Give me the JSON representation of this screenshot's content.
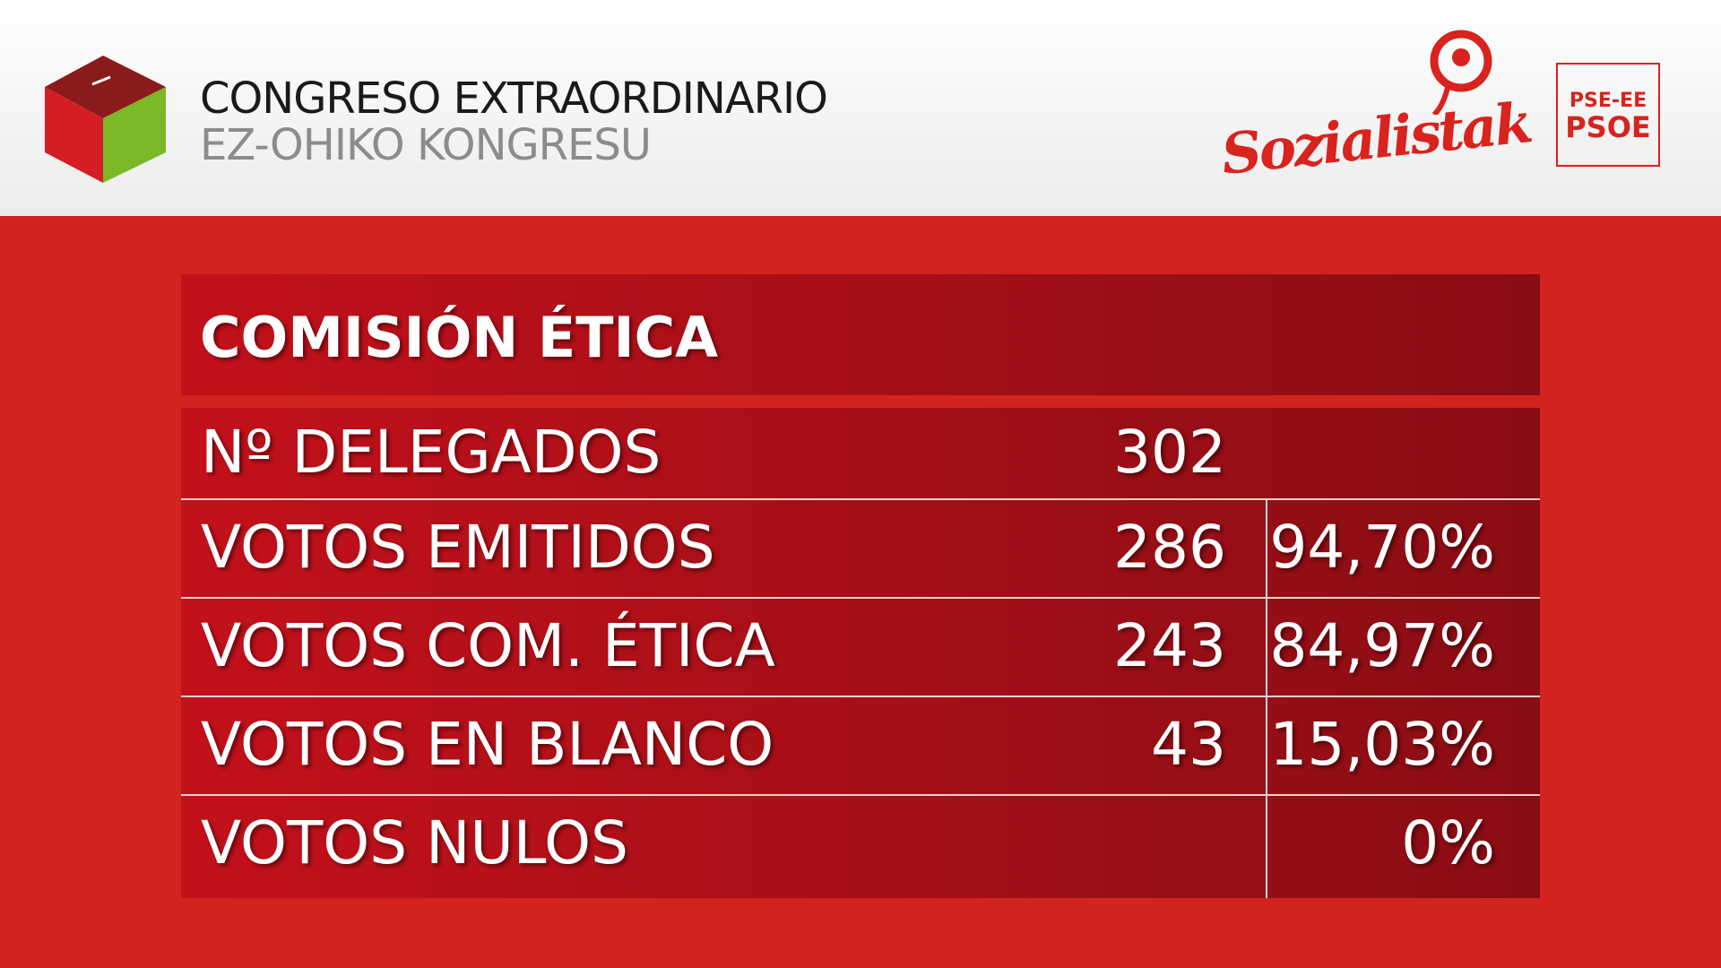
{
  "header": {
    "title": "CONGRESO EXTRAORDINARIO",
    "subtitle": "EZ-OHIKO KONGRESU",
    "party_logo": "Sozialistak",
    "badge": [
      "PSE-EE",
      "PSOE"
    ]
  },
  "table": {
    "title": "COMISIÓN ÉTICA",
    "rows": [
      {
        "label": "Nº DELEGADOS",
        "count": 302
      },
      {
        "label": "VOTOS EMITIDOS",
        "count": 286,
        "percent": "94,70%"
      },
      {
        "label": "VOTOS COM. ÉTICA",
        "count": 243,
        "percent": "84,97%"
      },
      {
        "label": "VOTOS EN BLANCO",
        "count": 43,
        "percent": "15,03%"
      },
      {
        "label": "VOTOS NULOS",
        "percent": "0%"
      }
    ]
  }
}
